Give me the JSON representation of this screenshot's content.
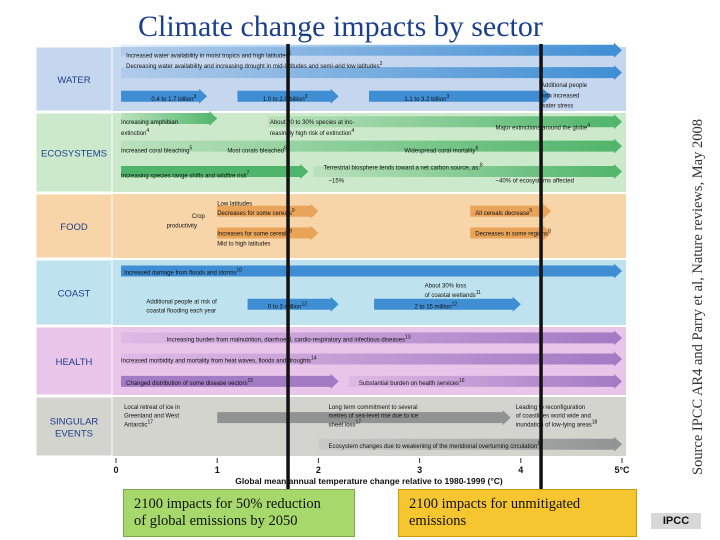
{
  "title": "Climate change impacts by sector",
  "source": "Source IPCC AR4 and Parry et al, Nature reviews, May 2008",
  "box_left": {
    "line1": "2100 impacts for 50% reduction",
    "line2": "of global emissions by 2050"
  },
  "box_right": {
    "line1": "2100 impacts for unmitigated",
    "line2": "emissions"
  },
  "logo": "IPCC",
  "colors": {
    "water": "#c5d7ee",
    "ecosystems": "#cde9cb",
    "food": "#f7d5a8",
    "coast": "#bfe3ee",
    "health": "#e9c5ea",
    "singular": "#d4d4cf",
    "arrow_blue": "#3f8ed4",
    "arrow_green": "#4fb56a",
    "arrow_orange": "#e9a45a",
    "arrow_purple": "#a37ac4",
    "arrow_gray": "#8f9392",
    "marker": "#111111",
    "title": "#1c3f8c"
  },
  "chart_data": {
    "type": "other",
    "xlabel": "Global mean annual temperature change relative to 1980-1999 (°C)",
    "xlim": [
      0,
      5
    ],
    "ticks": [
      "0",
      "1",
      "2",
      "3",
      "4",
      "5°C"
    ],
    "reference_lines": [
      1.7,
      4.2
    ],
    "sectors": [
      {
        "name": "WATER",
        "color_key": "water",
        "arrow_key": "arrow_blue",
        "bands": [
          {
            "y": 0.05,
            "x0": 0.05,
            "x1": 5.0,
            "fade": true
          },
          {
            "y": 0.4,
            "x0": 0.05,
            "x1": 5.0,
            "fade": true
          },
          {
            "y": 0.77,
            "x0": 0.05,
            "x1": 0.9,
            "fade": false
          },
          {
            "y": 0.77,
            "x0": 1.2,
            "x1": 2.2,
            "fade": false
          },
          {
            "y": 0.77,
            "x0": 2.5,
            "x1": 4.3,
            "fade": false
          }
        ],
        "labels": [
          {
            "t": "Increased water availability in moist tropics and high latitudes",
            "s": "1",
            "x": 0.1,
            "y": 0.12
          },
          {
            "t": "Decreasing water availability and increasing drought in mid-latitudes and semi-arid low latitudes",
            "s": "2",
            "x": 0.1,
            "y": 0.28
          },
          {
            "t": "0.4 to 1.7 billion",
            "s": "3",
            "x": 0.35,
            "y": 0.8
          },
          {
            "t": "1.0 to 2.0 billion",
            "s": "3",
            "x": 1.45,
            "y": 0.8
          },
          {
            "t": "1.1 to 3.2 billion",
            "s": "3",
            "x": 2.85,
            "y": 0.8
          },
          {
            "t": "Additional people",
            "s": "",
            "x": 4.2,
            "y": 0.58
          },
          {
            "t": "with increased",
            "s": "",
            "x": 4.2,
            "y": 0.74
          },
          {
            "t": "water stress",
            "s": "",
            "x": 4.2,
            "y": 0.9
          }
        ]
      },
      {
        "name": "ECOSYSTEMS",
        "color_key": "ecosystems",
        "arrow_key": "arrow_green",
        "bands": [
          {
            "y": 0.07,
            "x0": 0.05,
            "x1": 1.0,
            "fade": true
          },
          {
            "y": 0.11,
            "x0": 1.5,
            "x1": 5.0,
            "fade": true
          },
          {
            "y": 0.42,
            "x0": 0.05,
            "x1": 5.0,
            "fade": true
          },
          {
            "y": 0.74,
            "x0": 0.05,
            "x1": 1.9,
            "fade": false
          },
          {
            "y": 0.74,
            "x0": 1.95,
            "x1": 5.0,
            "fade": true
          }
        ],
        "labels": [
          {
            "t": "Increasing amphibian",
            "s": "",
            "x": 0.05,
            "y": 0.1
          },
          {
            "t": "extinction",
            "s": "4",
            "x": 0.05,
            "y": 0.24
          },
          {
            "t": "About 20 to 30% species at inc-",
            "s": "",
            "x": 1.52,
            "y": 0.1
          },
          {
            "t": "reasingly high risk of extinction",
            "s": "4",
            "x": 1.52,
            "y": 0.24
          },
          {
            "t": "Major extinctions around the globe",
            "s": "4",
            "x": 3.75,
            "y": 0.17
          },
          {
            "t": "Increased coral bleaching",
            "s": "5",
            "x": 0.05,
            "y": 0.46
          },
          {
            "t": "Most corals bleached",
            "s": "6",
            "x": 1.1,
            "y": 0.46
          },
          {
            "t": "Widespread coral mortality",
            "s": "6",
            "x": 2.85,
            "y": 0.46
          },
          {
            "t": "Increasing species range shifts and wildfire risk",
            "s": "7",
            "x": 0.05,
            "y": 0.78
          },
          {
            "t": "Terrestrial biosphere tends toward a net carbon source, as:",
            "s": "8",
            "x": 2.05,
            "y": 0.68
          },
          {
            "t": "~15%",
            "s": "",
            "x": 2.1,
            "y": 0.84
          },
          {
            "t": "~40% of ecosystems affected",
            "s": "",
            "x": 3.75,
            "y": 0.84
          }
        ]
      },
      {
        "name": "FOOD",
        "color_key": "food",
        "arrow_key": "arrow_orange",
        "bands": [
          {
            "y": 0.27,
            "x0": 1.0,
            "x1": 2.0,
            "fade": false
          },
          {
            "y": 0.27,
            "x0": 3.5,
            "x1": 4.3,
            "fade": false
          },
          {
            "y": 0.61,
            "x0": 1.0,
            "x1": 2.0,
            "fade": false
          },
          {
            "y": 0.61,
            "x0": 3.5,
            "x1": 4.3,
            "fade": false
          }
        ],
        "labels": [
          {
            "t": "Crop",
            "s": "",
            "x": 0.75,
            "y": 0.33
          },
          {
            "t": "productivity",
            "s": "",
            "x": 0.5,
            "y": 0.48
          },
          {
            "t": "Low latitudes",
            "s": "",
            "x": 1.0,
            "y": 0.13
          },
          {
            "t": "Decreases for some cereals",
            "s": "9",
            "x": 1.0,
            "y": 0.28
          },
          {
            "t": "All cereals decrease",
            "s": "9",
            "x": 3.55,
            "y": 0.28
          },
          {
            "t": "Increases for some cereals",
            "s": "9",
            "x": 1.0,
            "y": 0.6
          },
          {
            "t": "Decreases in some regions",
            "s": "9",
            "x": 3.55,
            "y": 0.6
          },
          {
            "t": "Mid to high latitudes",
            "s": "",
            "x": 1.0,
            "y": 0.76
          }
        ]
      },
      {
        "name": "COAST",
        "color_key": "coast",
        "arrow_key": "arrow_blue",
        "bands": [
          {
            "y": 0.17,
            "x0": 0.05,
            "x1": 5.0,
            "fade": false
          },
          {
            "y": 0.68,
            "x0": 1.3,
            "x1": 2.2,
            "fade": false
          },
          {
            "y": 0.68,
            "x0": 2.55,
            "x1": 4.0,
            "fade": false
          }
        ],
        "labels": [
          {
            "t": "Increased damage from floods and storms",
            "s": "10",
            "x": 0.08,
            "y": 0.18
          },
          {
            "t": "About 30% loss",
            "s": "",
            "x": 3.05,
            "y": 0.38
          },
          {
            "t": "of coastal wetlands",
            "s": "11",
            "x": 3.05,
            "y": 0.52
          },
          {
            "t": "Additional people at risk of",
            "s": "",
            "x": 0.3,
            "y": 0.62
          },
          {
            "t": "coastal flooding each year",
            "s": "",
            "x": 0.3,
            "y": 0.76
          },
          {
            "t": "0 to 3 million",
            "s": "12",
            "x": 1.5,
            "y": 0.7
          },
          {
            "t": "2 to 15 million",
            "s": "12",
            "x": 2.95,
            "y": 0.7
          }
        ]
      },
      {
        "name": "HEALTH",
        "color_key": "health",
        "arrow_key": "arrow_purple",
        "bands": [
          {
            "y": 0.16,
            "x0": 0.05,
            "x1": 5.0,
            "fade": true
          },
          {
            "y": 0.47,
            "x0": 0.05,
            "x1": 5.0,
            "fade": true
          },
          {
            "y": 0.8,
            "x0": 0.05,
            "x1": 2.2,
            "fade": false
          },
          {
            "y": 0.8,
            "x0": 2.3,
            "x1": 5.0,
            "fade": true
          }
        ],
        "labels": [
          {
            "t": "Increasing burden from malnutrition, diarrhoeal, cardio-respiratory and infectious diseases",
            "s": "13",
            "x": 0.5,
            "y": 0.17
          },
          {
            "t": "Increased morbidity and mortality from heat waves, floods and droughts",
            "s": "14",
            "x": 0.05,
            "y": 0.48
          },
          {
            "t": "Changed distribution of some disease vectors",
            "s": "15",
            "x": 0.1,
            "y": 0.81
          },
          {
            "t": "Substantial burden on health services",
            "s": "16",
            "x": 2.4,
            "y": 0.81
          }
        ]
      },
      {
        "name": "SINGULAR EVENTS",
        "color_key": "singular",
        "arrow_key": "arrow_gray",
        "bands": [
          {
            "y": 0.35,
            "x0": 1.0,
            "x1": 3.9,
            "fade": false
          },
          {
            "y": 0.8,
            "x0": 2.0,
            "x1": 5.0,
            "fade": true
          }
        ],
        "labels": [
          {
            "t": "Local retreat of ice in",
            "s": "",
            "x": 0.08,
            "y": 0.15
          },
          {
            "t": "Greenland and West",
            "s": "",
            "x": 0.08,
            "y": 0.3
          },
          {
            "t": "Antarctic",
            "s": "17",
            "x": 0.08,
            "y": 0.45
          },
          {
            "t": "Long term commitment to several",
            "s": "",
            "x": 2.1,
            "y": 0.15
          },
          {
            "t": "metres of sea-level rise due to ice",
            "s": "",
            "x": 2.1,
            "y": 0.3
          },
          {
            "t": "sheet loss",
            "s": "17",
            "x": 2.1,
            "y": 0.45
          },
          {
            "t": "Leading to reconfiguration",
            "s": "",
            "x": 3.95,
            "y": 0.15
          },
          {
            "t": "of coastlines world wide and",
            "s": "",
            "x": 3.95,
            "y": 0.3
          },
          {
            "t": "inundation of low-lying areas",
            "s": "18",
            "x": 3.95,
            "y": 0.45
          },
          {
            "t": "Ecosystem changes due to weakening of the meridional overturning circulation",
            "s": "19",
            "x": 2.1,
            "y": 0.81
          }
        ]
      }
    ]
  }
}
